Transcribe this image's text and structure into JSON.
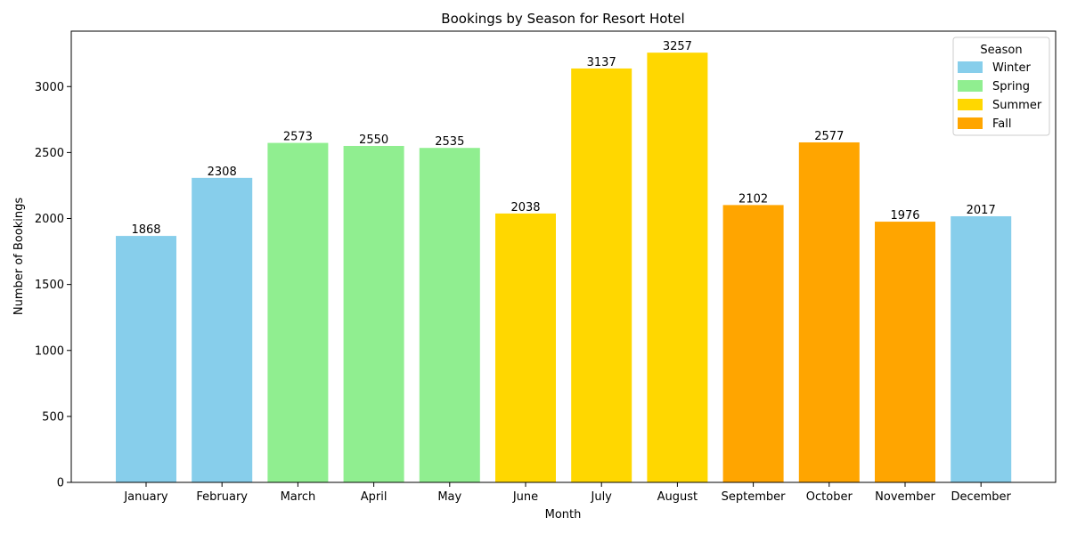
{
  "chart_data": {
    "type": "bar",
    "title": "Bookings by Season for Resort Hotel",
    "xlabel": "Month",
    "ylabel": "Number of Bookings",
    "categories": [
      "January",
      "February",
      "March",
      "April",
      "May",
      "June",
      "July",
      "August",
      "September",
      "October",
      "November",
      "December"
    ],
    "values": [
      1868,
      2308,
      2573,
      2550,
      2535,
      2038,
      3137,
      3257,
      2102,
      2577,
      1976,
      2017
    ],
    "seasons": [
      "Winter",
      "Winter",
      "Spring",
      "Spring",
      "Spring",
      "Summer",
      "Summer",
      "Summer",
      "Fall",
      "Fall",
      "Fall",
      "Winter"
    ],
    "ylim": [
      0,
      3420
    ],
    "yticks": [
      0,
      500,
      1000,
      1500,
      2000,
      2500,
      3000
    ],
    "grid": false,
    "legend": {
      "title": "Season",
      "placement": "top-right",
      "entries": [
        {
          "name": "Winter",
          "color": "#87CEEB"
        },
        {
          "name": "Spring",
          "color": "#90EE90"
        },
        {
          "name": "Summer",
          "color": "#FFD700"
        },
        {
          "name": "Fall",
          "color": "#FFA500"
        }
      ]
    }
  }
}
